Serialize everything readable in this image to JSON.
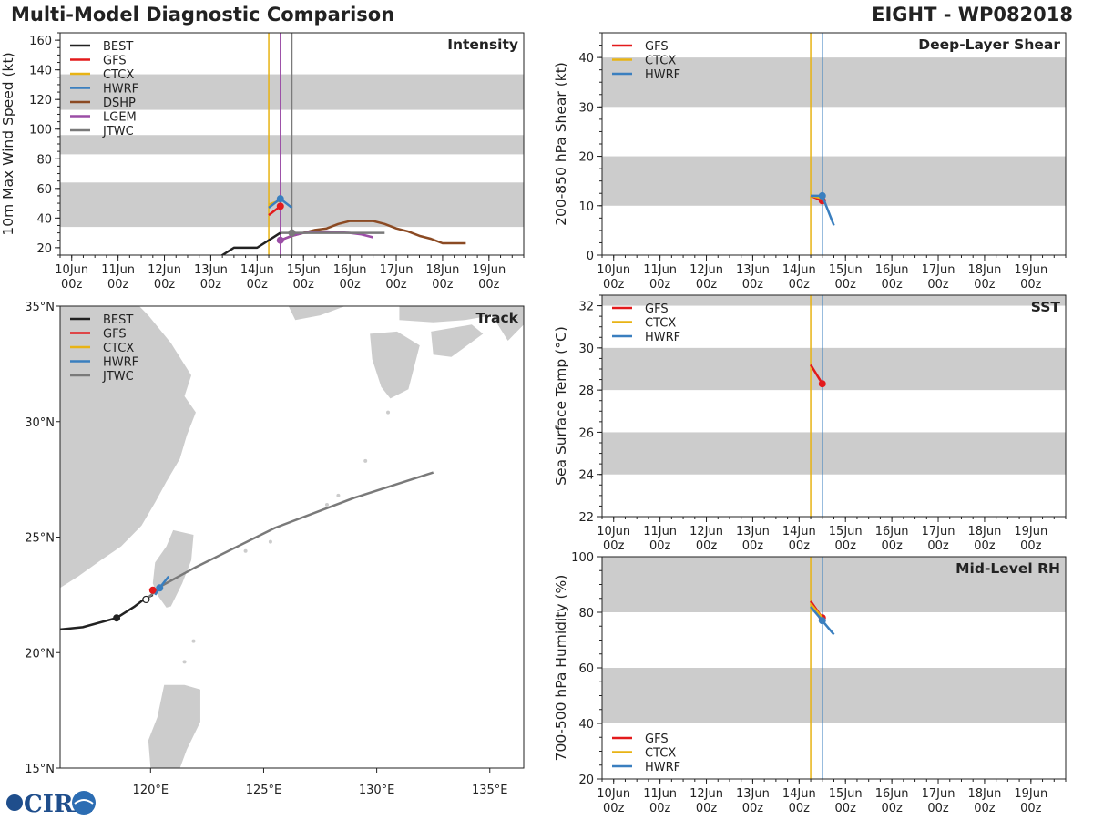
{
  "header": {
    "title_left": "Multi-Model Diagnostic Comparison",
    "title_right": "EIGHT - WP082018"
  },
  "logo": {
    "text": "CIRA"
  },
  "colors": {
    "BEST": "#222222",
    "GFS": "#e31a1c",
    "CTCX": "#e8b314",
    "HWRF": "#3a7fbf",
    "DSHP": "#8b4a23",
    "LGEM": "#9b4ea6",
    "JTWC": "#7a7a7a",
    "band": "#cccccc"
  },
  "chart_data": [
    {
      "id": "intensity",
      "type": "line",
      "title": "Intensity",
      "ylabel": "10m Max Wind Speed (kt)",
      "ylim": [
        15,
        165
      ],
      "yticks": [
        20,
        40,
        60,
        80,
        100,
        120,
        140,
        160
      ],
      "bands": [
        [
          34,
          64
        ],
        [
          83,
          96
        ],
        [
          113,
          137
        ]
      ],
      "x_ticks": [
        {
          "day": "10Jun",
          "hour": "00z",
          "x": 0
        },
        {
          "day": "11Jun",
          "hour": "00z",
          "x": 1
        },
        {
          "day": "12Jun",
          "hour": "00z",
          "x": 2
        },
        {
          "day": "13Jun",
          "hour": "00z",
          "x": 3
        },
        {
          "day": "14Jun",
          "hour": "00z",
          "x": 4
        },
        {
          "day": "15Jun",
          "hour": "00z",
          "x": 5
        },
        {
          "day": "16Jun",
          "hour": "00z",
          "x": 6
        },
        {
          "day": "17Jun",
          "hour": "00z",
          "x": 7
        },
        {
          "day": "18Jun",
          "hour": "00z",
          "x": 8
        },
        {
          "day": "19Jun",
          "hour": "00z",
          "x": 9
        }
      ],
      "xlim": [
        -0.25,
        9.75
      ],
      "vlines": [
        {
          "x": 4.25,
          "color_key": "CTCX"
        },
        {
          "x": 4.5,
          "color_key": "LGEM"
        },
        {
          "x": 4.75,
          "color_key": "JTWC"
        }
      ],
      "legend": [
        "BEST",
        "GFS",
        "CTCX",
        "HWRF",
        "DSHP",
        "LGEM",
        "JTWC"
      ],
      "series": [
        {
          "name": "BEST",
          "x": [
            3.0,
            3.25,
            3.5,
            3.75,
            4.0,
            4.25,
            4.5
          ],
          "y": [
            10,
            15,
            20,
            20,
            20,
            25,
            30
          ]
        },
        {
          "name": "GFS",
          "x": [
            4.25,
            4.5
          ],
          "y": [
            42,
            48
          ],
          "end_marker": true
        },
        {
          "name": "CTCX",
          "x": [
            4.25,
            4.5
          ],
          "y": [
            49,
            52
          ]
        },
        {
          "name": "HWRF",
          "x": [
            4.25,
            4.5,
            4.75
          ],
          "y": [
            47,
            53,
            47
          ],
          "marker_at": 1
        },
        {
          "name": "DSHP",
          "x": [
            4.5,
            4.75,
            5.0,
            5.25,
            5.5,
            5.75,
            6.0,
            6.25,
            6.5,
            6.75,
            7.0,
            7.25,
            7.5,
            7.75,
            8.0,
            8.25,
            8.5
          ],
          "y": [
            25,
            28,
            30,
            32,
            33,
            36,
            38,
            38,
            38,
            36,
            33,
            31,
            28,
            26,
            23,
            23,
            23
          ]
        },
        {
          "name": "LGEM",
          "x": [
            4.5,
            4.75,
            5.0,
            5.5,
            6.0,
            6.25,
            6.5
          ],
          "y": [
            25,
            28,
            30,
            31,
            30,
            29,
            27
          ],
          "marker_at": 0
        },
        {
          "name": "JTWC",
          "x": [
            4.5,
            4.75,
            5.0,
            5.5,
            6.0,
            6.5,
            6.75
          ],
          "y": [
            30,
            30,
            30,
            30,
            30,
            30,
            30
          ],
          "marker_at": 1
        }
      ]
    },
    {
      "id": "shear",
      "type": "line",
      "title": "Deep-Layer Shear",
      "ylabel": "200-850 hPa Shear (kt)",
      "ylim": [
        0,
        45
      ],
      "yticks": [
        0,
        10,
        20,
        30,
        40
      ],
      "bands": [
        [
          10,
          20
        ],
        [
          30,
          40
        ]
      ],
      "xlim": [
        -0.25,
        9.75
      ],
      "vlines": [
        {
          "x": 4.25,
          "color_key": "CTCX"
        },
        {
          "x": 4.5,
          "color_key": "HWRF"
        }
      ],
      "legend": [
        "GFS",
        "CTCX",
        "HWRF"
      ],
      "series": [
        {
          "name": "GFS",
          "x": [
            4.25,
            4.5
          ],
          "y": [
            12,
            11
          ],
          "end_marker": true
        },
        {
          "name": "CTCX",
          "x": [
            4.25,
            4.5
          ],
          "y": [
            12,
            11.5
          ]
        },
        {
          "name": "HWRF",
          "x": [
            4.25,
            4.5,
            4.75
          ],
          "y": [
            12,
            12,
            6
          ],
          "marker_at": 1
        }
      ]
    },
    {
      "id": "sst",
      "type": "line",
      "title": "SST",
      "ylabel": "Sea Surface Temp (°C)",
      "ylim": [
        22,
        32.5
      ],
      "yticks": [
        22,
        24,
        26,
        28,
        30,
        32
      ],
      "bands": [
        [
          24,
          26
        ],
        [
          28,
          30
        ],
        [
          32,
          33
        ]
      ],
      "xlim": [
        -0.25,
        9.75
      ],
      "vlines": [
        {
          "x": 4.25,
          "color_key": "CTCX"
        },
        {
          "x": 4.5,
          "color_key": "HWRF"
        }
      ],
      "legend": [
        "GFS",
        "CTCX",
        "HWRF"
      ],
      "series": [
        {
          "name": "GFS",
          "x": [
            4.25,
            4.5
          ],
          "y": [
            29.2,
            28.3
          ],
          "end_marker": true
        }
      ]
    },
    {
      "id": "rh",
      "type": "line",
      "title": "Mid-Level RH",
      "ylabel": "700-500 hPa Humidity (%)",
      "ylim": [
        20,
        100
      ],
      "yticks": [
        20,
        40,
        60,
        80,
        100
      ],
      "bands": [
        [
          40,
          60
        ],
        [
          80,
          100
        ]
      ],
      "xlim": [
        -0.25,
        9.75
      ],
      "vlines": [
        {
          "x": 4.25,
          "color_key": "CTCX"
        },
        {
          "x": 4.5,
          "color_key": "HWRF"
        }
      ],
      "legend": [
        "GFS",
        "CTCX",
        "HWRF"
      ],
      "legend_pos": "bottom-left",
      "series": [
        {
          "name": "GFS",
          "x": [
            4.25,
            4.5
          ],
          "y": [
            84,
            78
          ],
          "end_marker": true
        },
        {
          "name": "CTCX",
          "x": [
            4.25,
            4.5
          ],
          "y": [
            83,
            78
          ]
        },
        {
          "name": "HWRF",
          "x": [
            4.25,
            4.5,
            4.75
          ],
          "y": [
            82,
            77,
            72
          ],
          "marker_at": 1
        }
      ]
    },
    {
      "id": "track",
      "type": "line",
      "title": "Track",
      "xlim": [
        116.0,
        136.5
      ],
      "ylim": [
        15.0,
        35.0
      ],
      "xticks": [
        {
          "v": 120,
          "label": "120°E"
        },
        {
          "v": 125,
          "label": "125°E"
        },
        {
          "v": 130,
          "label": "130°E"
        },
        {
          "v": 135,
          "label": "135°E"
        }
      ],
      "yticks": [
        {
          "v": 15,
          "label": "15°N"
        },
        {
          "v": 20,
          "label": "20°N"
        },
        {
          "v": 25,
          "label": "25°N"
        },
        {
          "v": 30,
          "label": "30°N"
        },
        {
          "v": 35,
          "label": "35°N"
        }
      ],
      "legend": [
        "BEST",
        "GFS",
        "CTCX",
        "HWRF",
        "JTWC"
      ],
      "series": [
        {
          "name": "BEST",
          "lon": [
            116.0,
            117.0,
            118.5,
            119.3,
            119.7,
            120.1
          ],
          "lat": [
            21.0,
            21.1,
            21.5,
            22.0,
            22.3,
            22.5
          ],
          "markers": [
            2
          ]
        },
        {
          "name": "JTWC",
          "lon": [
            119.8,
            120.5,
            122.0,
            125.5,
            129.0,
            132.5
          ],
          "lat": [
            22.3,
            22.9,
            23.7,
            25.4,
            26.7,
            27.8
          ],
          "open_marker": 0
        },
        {
          "name": "GFS",
          "lon": [
            120.1
          ],
          "lat": [
            22.7
          ],
          "markers": [
            0
          ]
        },
        {
          "name": "HWRF",
          "lon": [
            120.2,
            120.4,
            120.8
          ],
          "lat": [
            22.5,
            22.8,
            23.3
          ],
          "markers": [
            1
          ]
        }
      ]
    }
  ]
}
